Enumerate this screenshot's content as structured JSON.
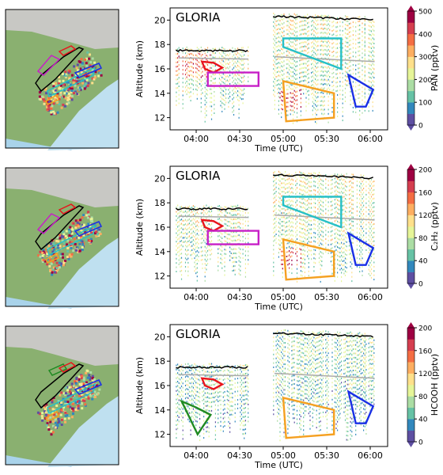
{
  "chart_data": [
    {
      "type": "heatmap",
      "panel_label": "GLORIA",
      "xlabel": "Time (UTC)",
      "ylabel": "Altitude (km)",
      "x_ticks": [
        "04:00",
        "04:30",
        "05:00",
        "05:30",
        "06:00"
      ],
      "y_ticks": [
        12,
        14,
        16,
        18,
        20
      ],
      "xlim_minutes_utc": [
        222,
        372
      ],
      "ylim_km": [
        11,
        21
      ],
      "colorbar": {
        "label": "PAN (pptv)",
        "ticks": [
          0,
          100,
          200,
          300,
          400,
          500
        ],
        "range": [
          0,
          500
        ],
        "colormap": "spectral_r"
      },
      "polygons": [
        {
          "color": "red",
          "points": [
            [
              244,
              16.6
            ],
            [
              252,
              16.5
            ],
            [
              258,
              16.1
            ],
            [
              252,
              15.7
            ],
            [
              246,
              16.0
            ]
          ]
        },
        {
          "color": "magenta",
          "points": [
            [
              248,
              15.7
            ],
            [
              283,
              15.7
            ],
            [
              283,
              14.6
            ],
            [
              248,
              14.6
            ]
          ]
        },
        {
          "color": "cyan",
          "points": [
            [
              300,
              18.5
            ],
            [
              340,
              18.5
            ],
            [
              340,
              16.0
            ],
            [
              300,
              17.8
            ]
          ]
        },
        {
          "color": "orange",
          "points": [
            [
              300,
              15.0
            ],
            [
              335,
              14.0
            ],
            [
              335,
              12.0
            ],
            [
              302,
              11.7
            ]
          ]
        },
        {
          "color": "blue",
          "points": [
            [
              345,
              15.5
            ],
            [
              362,
              14.3
            ],
            [
              357,
              12.9
            ],
            [
              350,
              12.9
            ]
          ]
        }
      ]
    },
    {
      "type": "heatmap",
      "panel_label": "GLORIA",
      "xlabel": "Time (UTC)",
      "ylabel": "Altitude (km)",
      "x_ticks": [
        "04:00",
        "04:30",
        "05:00",
        "05:30",
        "06:00"
      ],
      "y_ticks": [
        12,
        14,
        16,
        18,
        20
      ],
      "xlim_minutes_utc": [
        222,
        372
      ],
      "ylim_km": [
        11,
        21
      ],
      "colorbar": {
        "label": "C₂H₂ (pptv)",
        "ticks": [
          0,
          40,
          80,
          120,
          160,
          200
        ],
        "range": [
          0,
          200
        ],
        "colormap": "spectral_r"
      },
      "polygons": [
        {
          "color": "red",
          "points": [
            [
              244,
              16.6
            ],
            [
              252,
              16.5
            ],
            [
              258,
              16.1
            ],
            [
              252,
              15.7
            ],
            [
              246,
              16.0
            ]
          ]
        },
        {
          "color": "magenta",
          "points": [
            [
              248,
              15.7
            ],
            [
              283,
              15.7
            ],
            [
              283,
              14.6
            ],
            [
              248,
              14.6
            ]
          ]
        },
        {
          "color": "cyan",
          "points": [
            [
              300,
              18.5
            ],
            [
              340,
              18.5
            ],
            [
              340,
              16.0
            ],
            [
              300,
              17.8
            ]
          ]
        },
        {
          "color": "orange",
          "points": [
            [
              300,
              15.0
            ],
            [
              335,
              14.0
            ],
            [
              335,
              12.0
            ],
            [
              302,
              11.7
            ]
          ]
        },
        {
          "color": "blue",
          "points": [
            [
              345,
              15.5
            ],
            [
              362,
              14.3
            ],
            [
              357,
              12.9
            ],
            [
              350,
              12.9
            ]
          ]
        }
      ]
    },
    {
      "type": "heatmap",
      "panel_label": "GLORIA",
      "xlabel": "Time (UTC)",
      "ylabel": "Altitude (km)",
      "x_ticks": [
        "04:00",
        "04:30",
        "05:00",
        "05:30",
        "06:00"
      ],
      "y_ticks": [
        12,
        14,
        16,
        18,
        20
      ],
      "xlim_minutes_utc": [
        222,
        372
      ],
      "ylim_km": [
        11,
        21
      ],
      "colorbar": {
        "label": "HCOOH (pptv)",
        "ticks": [
          0,
          40,
          80,
          120,
          160,
          200
        ],
        "range": [
          0,
          200
        ],
        "colormap": "spectral_r"
      },
      "polygons": [
        {
          "color": "red",
          "points": [
            [
              244,
              16.6
            ],
            [
              252,
              16.5
            ],
            [
              258,
              16.1
            ],
            [
              252,
              15.7
            ],
            [
              246,
              16.0
            ]
          ]
        },
        {
          "color": "green",
          "points": [
            [
              230,
              14.7
            ],
            [
              240,
              14.2
            ],
            [
              250,
              13.6
            ],
            [
              241,
              12.0
            ]
          ]
        },
        {
          "color": "orange",
          "points": [
            [
              300,
              15.0
            ],
            [
              335,
              14.0
            ],
            [
              335,
              12.0
            ],
            [
              302,
              11.7
            ]
          ]
        },
        {
          "color": "blue",
          "points": [
            [
              345,
              15.5
            ],
            [
              362,
              14.3
            ],
            [
              357,
              12.9
            ],
            [
              350,
              12.9
            ]
          ]
        }
      ]
    }
  ],
  "colors": {
    "spectral_r": [
      "#5e4fa2",
      "#3288bd",
      "#66c2a5",
      "#abdda4",
      "#e6f598",
      "#fee08b",
      "#fdae61",
      "#f46d43",
      "#d53e4f",
      "#9e0142"
    ],
    "red": "#e8141c",
    "magenta": "#c71fc7",
    "cyan": "#26c0c7",
    "orange": "#f5a020",
    "blue": "#1a2fe6",
    "green": "#1f8a22",
    "black": "#000000"
  }
}
